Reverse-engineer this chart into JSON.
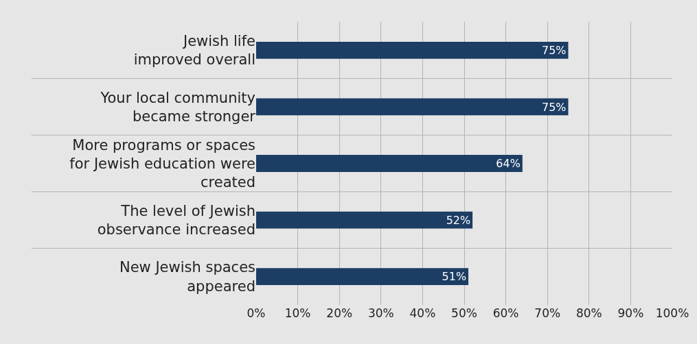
{
  "chart_data": {
    "type": "bar",
    "orientation": "horizontal",
    "categories": [
      "Jewish life\nimproved overall",
      "Your local community\nbecame stronger",
      "More programs or spaces\nfor Jewish education were\ncreated",
      "The level of Jewish\nobservance increased",
      "New Jewish spaces\nappeared"
    ],
    "values": [
      75,
      75,
      64,
      52,
      51
    ],
    "color": "#1c3d64",
    "value_labels": [
      "75%",
      "75%",
      "64%",
      "52%",
      "51%"
    ],
    "xlim": [
      0,
      100
    ],
    "xticks": [
      {
        "value": 0,
        "label": "0%"
      },
      {
        "value": 10,
        "label": "10%"
      },
      {
        "value": 20,
        "label": "20%"
      },
      {
        "value": 30,
        "label": "30%"
      },
      {
        "value": 40,
        "label": "40%"
      },
      {
        "value": 50,
        "label": "50%"
      },
      {
        "value": 60,
        "label": "60%"
      },
      {
        "value": 70,
        "label": "70%"
      },
      {
        "value": 80,
        "label": "80%"
      },
      {
        "value": 90,
        "label": "90%"
      },
      {
        "value": 100,
        "label": "100%"
      }
    ],
    "grid": "x",
    "legend": false
  }
}
